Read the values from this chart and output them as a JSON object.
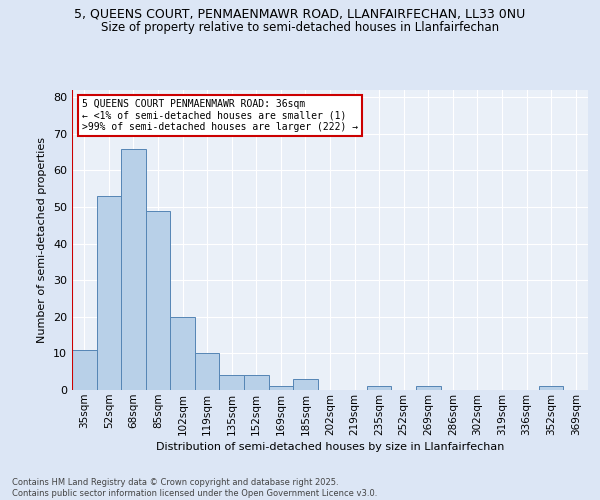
{
  "title_line1": "5, QUEENS COURT, PENMAENMAWR ROAD, LLANFAIRFECHAN, LL33 0NU",
  "title_line2": "Size of property relative to semi-detached houses in Llanfairfechan",
  "xlabel": "Distribution of semi-detached houses by size in Llanfairfechan",
  "ylabel": "Number of semi-detached properties",
  "categories": [
    "35sqm",
    "52sqm",
    "68sqm",
    "85sqm",
    "102sqm",
    "119sqm",
    "135sqm",
    "152sqm",
    "169sqm",
    "185sqm",
    "202sqm",
    "219sqm",
    "235sqm",
    "252sqm",
    "269sqm",
    "286sqm",
    "302sqm",
    "319sqm",
    "336sqm",
    "352sqm",
    "369sqm"
  ],
  "values": [
    11,
    53,
    66,
    49,
    20,
    10,
    4,
    4,
    1,
    3,
    0,
    0,
    1,
    0,
    1,
    0,
    0,
    0,
    0,
    1,
    0
  ],
  "bar_color": "#b8d0e8",
  "bar_edge_color": "#5585b5",
  "highlight_line_color": "#cc0000",
  "annotation_text": "5 QUEENS COURT PENMAENMAWR ROAD: 36sqm\n← <1% of semi-detached houses are smaller (1)\n>99% of semi-detached houses are larger (222) →",
  "annotation_box_color": "#ffffff",
  "annotation_box_edge": "#cc0000",
  "ylim": [
    0,
    82
  ],
  "yticks": [
    0,
    10,
    20,
    30,
    40,
    50,
    60,
    70,
    80
  ],
  "footer_line1": "Contains HM Land Registry data © Crown copyright and database right 2025.",
  "footer_line2": "Contains public sector information licensed under the Open Government Licence v3.0.",
  "bg_color": "#dce6f5",
  "plot_bg_color": "#eaf0f8"
}
